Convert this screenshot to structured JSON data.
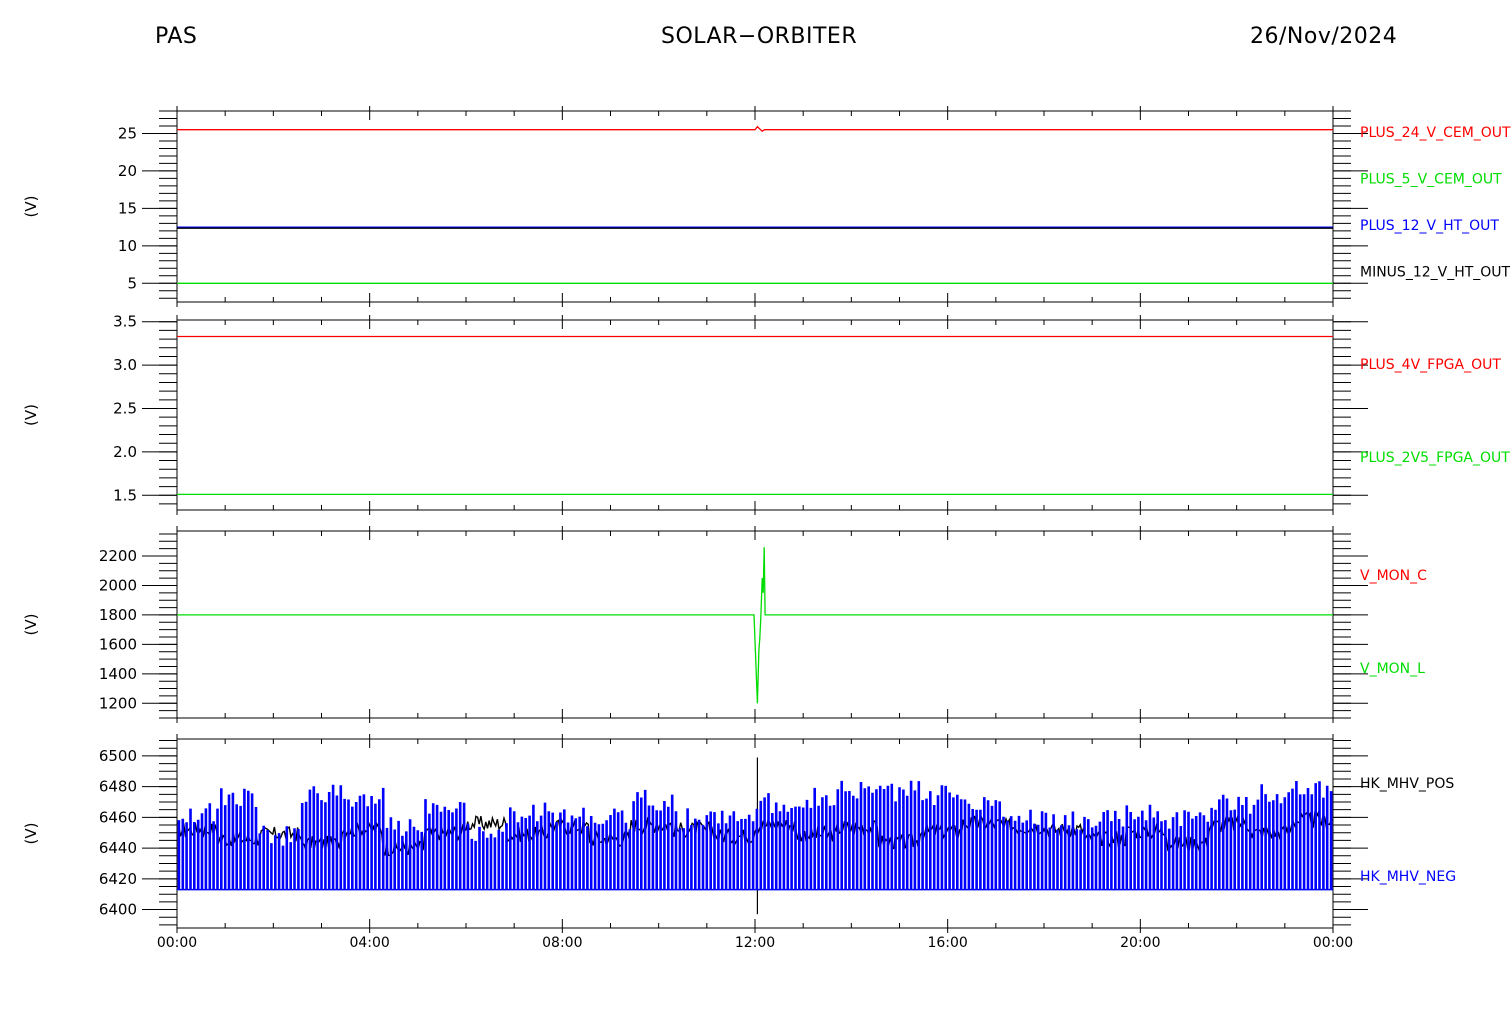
{
  "header": {
    "left": "PAS",
    "center": "SOLAR−ORBITER",
    "right": "26/Nov/2024"
  },
  "chart_data": {
    "type": "line",
    "x_ticks": [
      "00:00",
      "04:00",
      "08:00",
      "12:00",
      "16:00",
      "20:00",
      "00:00"
    ],
    "xlim_hours": [
      0,
      24
    ],
    "panels": [
      {
        "ylabel": "(V)",
        "ylim": [
          2.5,
          28
        ],
        "y_ticks": [
          5,
          10,
          15,
          20,
          25
        ],
        "minor_step": 1,
        "series": [
          {
            "name": "PLUS_24_V_CEM_OUT",
            "color": "#ff0000",
            "x": [
              0,
              12.0,
              12.05,
              12.1,
              12.15,
              12.2,
              24
            ],
            "y": [
              25.5,
              25.5,
              25.9,
              25.6,
              25.3,
              25.5,
              25.5
            ]
          },
          {
            "name": "PLUS_5_V_CEM_OUT",
            "color": "#00dd00",
            "x": [
              0,
              24
            ],
            "y": [
              5.0,
              5.0
            ]
          },
          {
            "name": "PLUS_12_V_HT_OUT",
            "color": "#0000ff",
            "x": [
              0,
              24
            ],
            "y": [
              12.45,
              12.45
            ]
          },
          {
            "name": "MINUS_12_V_HT_OUT",
            "color": "#000000",
            "x": [
              0,
              24
            ],
            "y": [
              12.35,
              12.35
            ]
          }
        ]
      },
      {
        "ylabel": "(V)",
        "ylim": [
          1.33,
          3.52
        ],
        "y_ticks": [
          1.5,
          2.0,
          2.5,
          3.0,
          3.5
        ],
        "y_tick_labels": [
          "1.5",
          "2.0",
          "2.5",
          "3.0",
          "3.5"
        ],
        "minor_step": 0.1,
        "series": [
          {
            "name": "PLUS_4V_FPGA_OUT",
            "color": "#ff0000",
            "x": [
              0,
              24
            ],
            "y": [
              3.33,
              3.33
            ]
          },
          {
            "name": "PLUS_2V5_FPGA_OUT",
            "color": "#00dd00",
            "x": [
              0,
              24
            ],
            "y": [
              1.51,
              1.51
            ]
          }
        ]
      },
      {
        "ylabel": "(V)",
        "ylim": [
          1100,
          2370
        ],
        "y_ticks": [
          1200,
          1400,
          1600,
          1800,
          2000,
          2200
        ],
        "minor_step": 50,
        "series": [
          {
            "name": "V_MON_C",
            "color": "#ff0000",
            "x": [],
            "y": []
          },
          {
            "name": "V_MON_L",
            "color": "#00dd00",
            "x": [
              0,
              11.98,
              12.05,
              12.08,
              12.1,
              12.12,
              12.15,
              12.17,
              12.19,
              12.21,
              24
            ],
            "y": [
              1800,
              1800,
              1200,
              1560,
              1640,
              1780,
              2050,
              1950,
              2260,
              1800,
              1800
            ]
          }
        ]
      },
      {
        "ylabel": "(V)",
        "ylim": [
          6388,
          6511
        ],
        "y_ticks": [
          6400,
          6420,
          6440,
          6460,
          6480,
          6500
        ],
        "minor_step": 5,
        "series": [
          {
            "name": "HK_MHV_POS",
            "color": "#000000",
            "base": [
              6452,
              6446,
              6449,
              6443,
              6452,
              6440,
              6450,
              6456,
              6449,
              6454,
              6446,
              6455,
              6452,
              6448,
              6455,
              6449,
              6453,
              6444,
              6451,
              6456,
              6454,
              6452,
              6446,
              6451,
              6443,
              6455,
              6450,
              6458
            ],
            "spike_x": 12.05,
            "spike_range": [
              6397,
              6499
            ]
          },
          {
            "name": "HK_MHV_NEG",
            "color": "#0000ff",
            "low": 6413,
            "high": [
              6470,
              6480,
              6455,
              6482,
              6480,
              6462,
              6476,
              6458,
              6470,
              6468,
              6466,
              6478,
              6466,
              6468,
              6476,
              6480,
              6484,
              6484,
              6482,
              6478,
              6468,
              6464,
              6466,
              6470,
              6466,
              6476,
              6482,
              6484
            ]
          }
        ]
      }
    ]
  }
}
